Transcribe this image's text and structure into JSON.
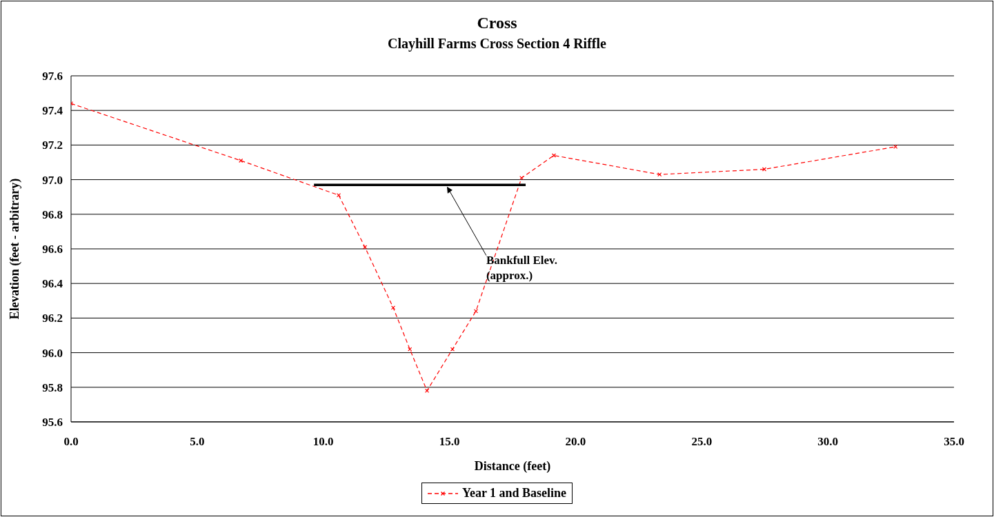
{
  "chart_data": {
    "type": "line",
    "title": "Cross",
    "subtitle": "Clayhill Farms Cross Section 4 Riffle",
    "xlabel": "Distance (feet)",
    "ylabel": "Elevation (feet - arbitrary)",
    "series": [
      {
        "name": "Year 1 and Baseline",
        "color": "#ff0000",
        "marker": "cross",
        "line_style": "dashed",
        "x": [
          0,
          6.73,
          10.61,
          11.65,
          12.77,
          13.43,
          14.11,
          15.12,
          16.05,
          17.86,
          19.14,
          23.33,
          27.48,
          32.68
        ],
        "values": [
          97.44,
          97.11,
          96.91,
          96.61,
          96.26,
          96.02,
          95.78,
          96.02,
          96.24,
          97.01,
          97.14,
          97.03,
          97.06,
          97.19
        ]
      },
      {
        "color": "#000000",
        "marker": "none",
        "line_style": "solid",
        "x": [
          9.63,
          18.02
        ],
        "values": [
          96.97,
          96.97
        ]
      }
    ],
    "annotations": [
      {
        "text": "Bankfull Elev.\n(approx.)",
        "x": 14.9,
        "y": 96.96
      }
    ],
    "xlim": [
      0,
      35
    ],
    "xticks": [
      {
        "value": 0,
        "label": "0.0"
      },
      {
        "value": 5,
        "label": "5.0"
      },
      {
        "value": 10,
        "label": "10.0"
      },
      {
        "value": 15,
        "label": "15.0"
      },
      {
        "value": 20,
        "label": "20.0"
      },
      {
        "value": 25,
        "label": "25.0"
      },
      {
        "value": 30,
        "label": "30.0"
      },
      {
        "value": 35,
        "label": "35.0"
      }
    ],
    "ylim": [
      95.6,
      97.6
    ],
    "yticks": [
      95.6,
      95.8,
      {
        "value": 96,
        "label": "96.0"
      },
      96.2,
      96.4,
      96.6,
      96.8,
      {
        "value": 97,
        "label": "97.0"
      },
      97.2,
      97.4,
      97.6
    ],
    "grid": "y",
    "legend": "bottom"
  }
}
